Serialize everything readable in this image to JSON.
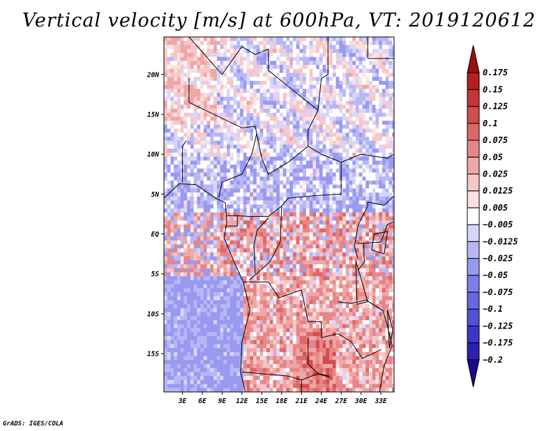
{
  "chart_data": {
    "type": "heatmap",
    "title": "Vertical velocity [m/s] at 600hPa, VT: 2019120612",
    "x_tick_labels": [
      "3E",
      "6E",
      "9E",
      "12E",
      "15E",
      "18E",
      "21E",
      "24E",
      "27E",
      "30E",
      "33E"
    ],
    "x_tick_values": [
      3,
      6,
      9,
      12,
      15,
      18,
      21,
      24,
      27,
      30,
      33
    ],
    "y_tick_labels": [
      "20N",
      "15N",
      "10N",
      "5N",
      "EQ",
      "5S",
      "10S",
      "15S"
    ],
    "y_tick_values": [
      20,
      15,
      10,
      5,
      0,
      -5,
      -10,
      -15
    ],
    "xlim": [
      0.2,
      35.0
    ],
    "ylim": [
      -19.8,
      24.7
    ],
    "colorbar": {
      "levels": [
        -0.2,
        -0.175,
        -0.125,
        -0.1,
        -0.075,
        -0.05,
        -0.025,
        -0.0125,
        -0.005,
        0.005,
        0.0125,
        0.025,
        0.05,
        0.075,
        0.1,
        0.125,
        0.15,
        0.175
      ],
      "labels": [
        "−0.2",
        "−0.175",
        "−0.125",
        "−0.1",
        "−0.075",
        "−0.05",
        "−0.025",
        "−0.0125",
        "−0.005",
        "0.005",
        "0.0125",
        "0.025",
        "0.05",
        "0.075",
        "0.1",
        "0.125",
        "0.15",
        "0.175"
      ],
      "colors": [
        "#1a0a8c",
        "#2d22b0",
        "#3d37c8",
        "#5250d6",
        "#6866e0",
        "#7f7ee8",
        "#9a99f0",
        "#b7b7f6",
        "#d6d6fb",
        "#ffffff",
        "#fbe0e0",
        "#f7c6c6",
        "#efa6a6",
        "#e68686",
        "#dd6868",
        "#d24d4d",
        "#c53535",
        "#b41f1f",
        "#9e1010"
      ]
    },
    "field_description": [
      {
        "region": "Sahara / north (10N-25N)",
        "tendency": "weak negative and weak positive mixed, pale blue and pink streaks"
      },
      {
        "region": "Equatorial belt (2N-5S)",
        "tendency": "strong mixed positive, noisy red"
      },
      {
        "region": "Southern Africa inland (5S-20S, 15E-30E)",
        "tendency": "positive, red"
      },
      {
        "region": "Atlantic south of equator",
        "tendency": "negative, blue"
      }
    ]
  },
  "footer": {
    "credit": "GrADS: IGES/COLA"
  }
}
